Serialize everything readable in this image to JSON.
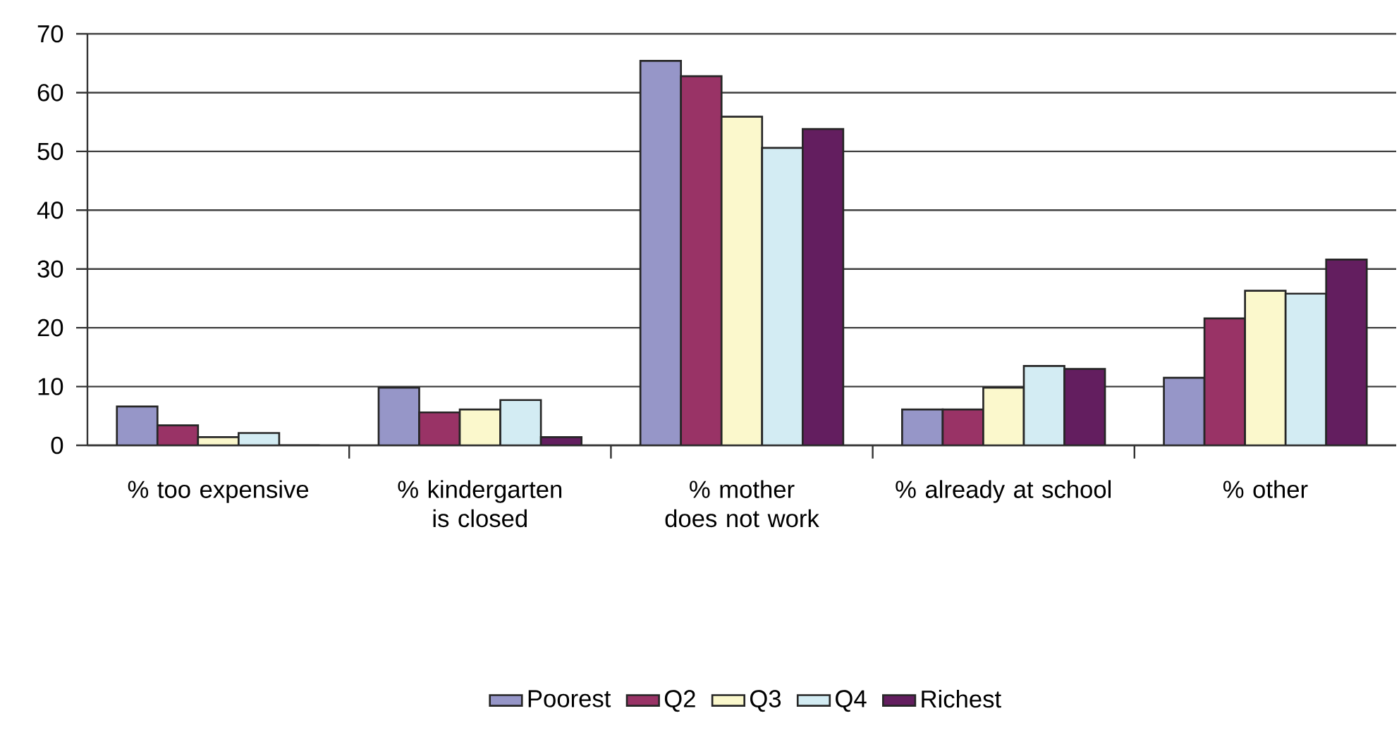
{
  "chart_data": {
    "type": "bar",
    "categories": [
      "% too expensive",
      "% kindergarten is closed",
      "% mother does not work",
      "% already at school",
      "% other"
    ],
    "series": [
      {
        "name": "Poorest",
        "color": "#9696c8",
        "values": [
          6.6,
          9.8,
          65.4,
          6.1,
          11.5
        ]
      },
      {
        "name": "Q2",
        "color": "#993366",
        "values": [
          3.4,
          5.6,
          62.8,
          6.1,
          21.6
        ]
      },
      {
        "name": "Q3",
        "color": "#fbf8cc",
        "values": [
          1.4,
          6.1,
          55.9,
          9.8,
          26.3
        ]
      },
      {
        "name": "Q4",
        "color": "#d3ecf3",
        "values": [
          2.1,
          7.7,
          50.6,
          13.5,
          25.8
        ]
      },
      {
        "name": "Richest",
        "color": "#631e5f",
        "values": [
          0,
          1.4,
          53.8,
          13.0,
          31.6
        ]
      }
    ],
    "ylim": [
      0,
      70
    ],
    "yticks": [
      0,
      10,
      20,
      30,
      40,
      50,
      60,
      70
    ],
    "grid": "y",
    "legend": "bottom"
  }
}
